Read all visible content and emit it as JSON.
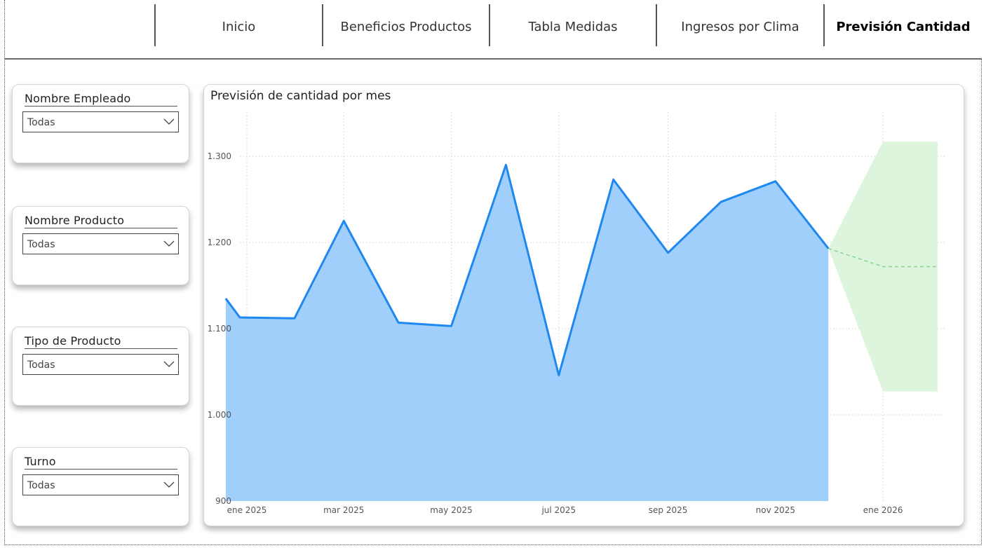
{
  "nav": {
    "tabs": [
      {
        "label": "Inicio",
        "active": false
      },
      {
        "label": "Beneficios Productos",
        "active": false
      },
      {
        "label": "Tabla Medidas",
        "active": false
      },
      {
        "label": "Ingresos por Clima",
        "active": false
      },
      {
        "label": "Previsión Cantidad",
        "active": true
      }
    ]
  },
  "slicers": [
    {
      "title": "Nombre Empleado",
      "value": "Todas"
    },
    {
      "title": "Nombre Producto",
      "value": "Todas"
    },
    {
      "title": "Tipo de Producto",
      "value": "Todas"
    },
    {
      "title": "Turno",
      "value": "Todas"
    }
  ],
  "colors": {
    "area_fill": "#a0cffb",
    "line": "#1e88f0",
    "forecast_band": "#ddf5dd",
    "forecast_line": "#8ad38a"
  },
  "chart_data": {
    "type": "area",
    "title": "Previsión de cantidad por mes",
    "xlabel": "",
    "ylabel": "",
    "ylim": [
      900,
      1350
    ],
    "yticks": [
      900,
      1000,
      1100,
      1200,
      1300
    ],
    "ytick_labels": [
      "900",
      "1.000",
      "1.100",
      "1.200",
      "1.300"
    ],
    "xtick_labels": [
      "ene 2025",
      "mar 2025",
      "may 2025",
      "jul 2025",
      "sep 2025",
      "nov 2025",
      "ene 2026"
    ],
    "grid": true,
    "series": [
      {
        "x": [
          "2024-12-24",
          "2025-01-01",
          "2025-02-01",
          "2025-03-01",
          "2025-04-01",
          "2025-05-01",
          "2025-06-01",
          "2025-07-01",
          "2025-08-01",
          "2025-09-01",
          "2025-10-01",
          "2025-11-01",
          "2025-12-01"
        ],
        "values": [
          1135,
          1113,
          1112,
          1225,
          1107,
          1103,
          1290,
          1046,
          1273,
          1188,
          1247,
          1271,
          1193
        ]
      }
    ],
    "forecast": {
      "x": [
        "2025-12-01",
        "2026-01-01",
        "2026-02-01"
      ],
      "values": [
        1193,
        1172,
        1172
      ],
      "upper": [
        1193,
        1317,
        1317
      ],
      "lower": [
        1193,
        1027,
        1027
      ]
    }
  }
}
